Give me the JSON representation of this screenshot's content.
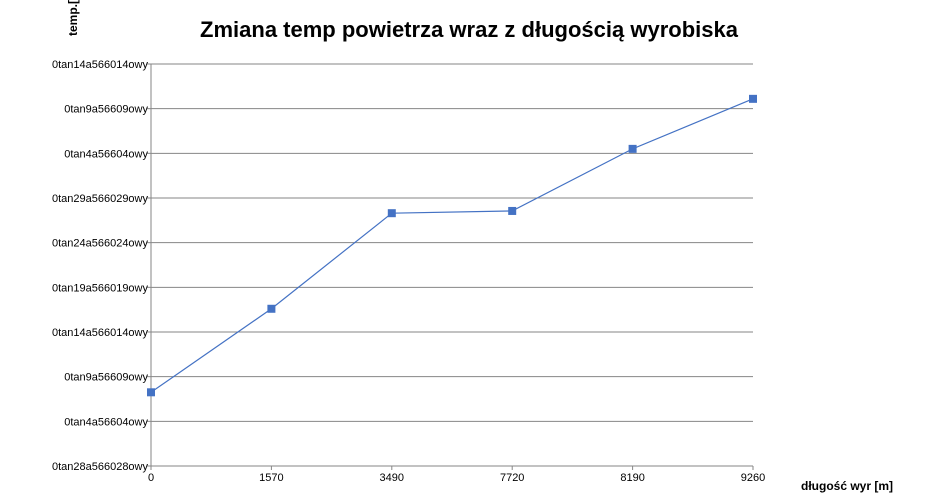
{
  "chart_data": {
    "type": "line",
    "title": "Zmiana temp powietrza wraz z długością wyrobiska",
    "ylabel": "temp.[",
    "xlabel": "długość wyr [m]",
    "categories": [
      "0",
      "1570",
      "3490",
      "7720",
      "8190",
      "9260"
    ],
    "y_tick_labels": [
      "0tan28a566028owy",
      "0tan4a56604owy",
      "0tan9a56609owy",
      "0tan14a566014owy",
      "0tan19a566019owy",
      "0tan24a566024owy",
      "0tan29a566029owy",
      "0tan4a56604owy",
      "0tan9a56609owy",
      "0tan14a566014owy"
    ],
    "ylim": [
      0,
      9
    ],
    "series": [
      {
        "values": [
          1.65,
          3.52,
          5.66,
          5.71,
          7.1,
          8.22
        ],
        "color": "#4472c4"
      }
    ],
    "grid": true,
    "legend": "none"
  }
}
